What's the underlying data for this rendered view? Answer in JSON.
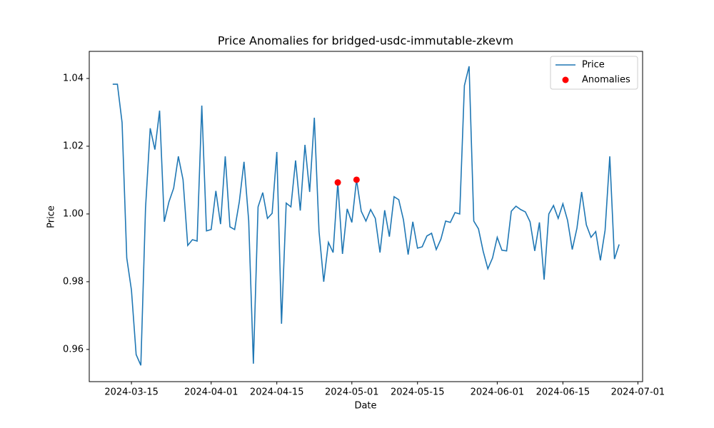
{
  "chart_data": {
    "type": "line",
    "title": "Price Anomalies for bridged-usdc-immutable-zkevm",
    "xlabel": "Date",
    "ylabel": "Price",
    "series": [
      {
        "name": "Price",
        "type": "line",
        "color": "#1f77b4",
        "x": [
          "2024-03-11",
          "2024-03-12",
          "2024-03-13",
          "2024-03-14",
          "2024-03-15",
          "2024-03-16",
          "2024-03-17",
          "2024-03-18",
          "2024-03-19",
          "2024-03-20",
          "2024-03-21",
          "2024-03-22",
          "2024-03-23",
          "2024-03-24",
          "2024-03-25",
          "2024-03-26",
          "2024-03-27",
          "2024-03-28",
          "2024-03-29",
          "2024-03-30",
          "2024-03-31",
          "2024-04-01",
          "2024-04-02",
          "2024-04-03",
          "2024-04-04",
          "2024-04-05",
          "2024-04-06",
          "2024-04-07",
          "2024-04-08",
          "2024-04-09",
          "2024-04-10",
          "2024-04-11",
          "2024-04-12",
          "2024-04-13",
          "2024-04-14",
          "2024-04-15",
          "2024-04-16",
          "2024-04-17",
          "2024-04-18",
          "2024-04-19",
          "2024-04-20",
          "2024-04-21",
          "2024-04-22",
          "2024-04-23",
          "2024-04-24",
          "2024-04-25",
          "2024-04-26",
          "2024-04-27",
          "2024-04-28",
          "2024-04-29",
          "2024-04-30",
          "2024-05-01",
          "2024-05-02",
          "2024-05-03",
          "2024-05-04",
          "2024-05-05",
          "2024-05-06",
          "2024-05-07",
          "2024-05-08",
          "2024-05-09",
          "2024-05-10",
          "2024-05-11",
          "2024-05-12",
          "2024-05-13",
          "2024-05-14",
          "2024-05-15",
          "2024-05-16",
          "2024-05-17",
          "2024-05-18",
          "2024-05-19",
          "2024-05-20",
          "2024-05-21",
          "2024-05-22",
          "2024-05-23",
          "2024-05-24",
          "2024-05-25",
          "2024-05-26",
          "2024-05-27",
          "2024-05-28",
          "2024-05-29",
          "2024-05-30",
          "2024-05-31",
          "2024-06-01",
          "2024-06-02",
          "2024-06-03",
          "2024-06-04",
          "2024-06-05",
          "2024-06-06",
          "2024-06-07",
          "2024-06-08",
          "2024-06-09",
          "2024-06-10",
          "2024-06-11",
          "2024-06-12",
          "2024-06-13",
          "2024-06-14",
          "2024-06-15",
          "2024-06-16",
          "2024-06-17",
          "2024-06-18",
          "2024-06-19",
          "2024-06-20",
          "2024-06-21",
          "2024-06-22",
          "2024-06-23",
          "2024-06-24",
          "2024-06-25",
          "2024-06-26",
          "2024-06-27"
        ],
        "values": [
          1.0383,
          1.0383,
          1.027,
          0.987,
          0.9775,
          0.9585,
          0.9553,
          1.0017,
          1.0253,
          1.019,
          1.0305,
          0.9977,
          1.0036,
          1.0076,
          1.017,
          1.0101,
          0.9907,
          0.9924,
          0.992,
          1.032,
          0.995,
          0.9954,
          1.0068,
          0.997,
          1.017,
          0.9962,
          0.9954,
          1.0036,
          1.0154,
          0.998,
          0.9558,
          1.0021,
          1.0063,
          0.9987,
          1.0002,
          1.0183,
          0.9676,
          1.0032,
          1.0021,
          1.0158,
          1.001,
          1.0204,
          1.0065,
          1.0284,
          0.9948,
          0.98,
          0.9916,
          0.9886,
          1.0093,
          0.9882,
          1.0015,
          0.9975,
          1.0101,
          1.0008,
          0.9979,
          1.0013,
          0.9987,
          0.9886,
          1.0011,
          0.9933,
          1.0051,
          1.0042,
          0.9983,
          0.988,
          0.9977,
          0.9899,
          0.9903,
          0.9935,
          0.9943,
          0.9895,
          0.9926,
          0.9979,
          0.9975,
          1.0004,
          1.0,
          1.0379,
          1.0436,
          0.9979,
          0.9956,
          0.989,
          0.9838,
          0.987,
          0.9931,
          0.9893,
          0.9891,
          1.0008,
          1.0023,
          1.0013,
          1.0006,
          0.9977,
          0.9891,
          0.9975,
          0.9806,
          1.0,
          1.0025,
          0.9987,
          1.003,
          0.9981,
          0.9895,
          0.9958,
          1.0065,
          0.9968,
          0.9931,
          0.9948,
          0.9863,
          0.9952,
          1.017,
          0.9867,
          0.991
        ]
      },
      {
        "name": "Anomalies",
        "type": "scatter",
        "color": "#ff0000",
        "x": [
          "2024-04-28",
          "2024-05-02"
        ],
        "values": [
          1.0093,
          1.0101
        ]
      }
    ],
    "xlim": [
      "2024-03-06",
      "2024-07-02"
    ],
    "xticks": [
      "2024-03-15",
      "2024-04-01",
      "2024-04-15",
      "2024-05-01",
      "2024-05-15",
      "2024-06-01",
      "2024-06-15",
      "2024-07-01"
    ],
    "ylim": [
      0.9505,
      1.048
    ],
    "yticks": [
      0.96,
      0.98,
      {
        "value": 1,
        "label": "1.00"
      },
      1.02,
      1.04
    ],
    "grid": false,
    "legend": "upper right"
  }
}
